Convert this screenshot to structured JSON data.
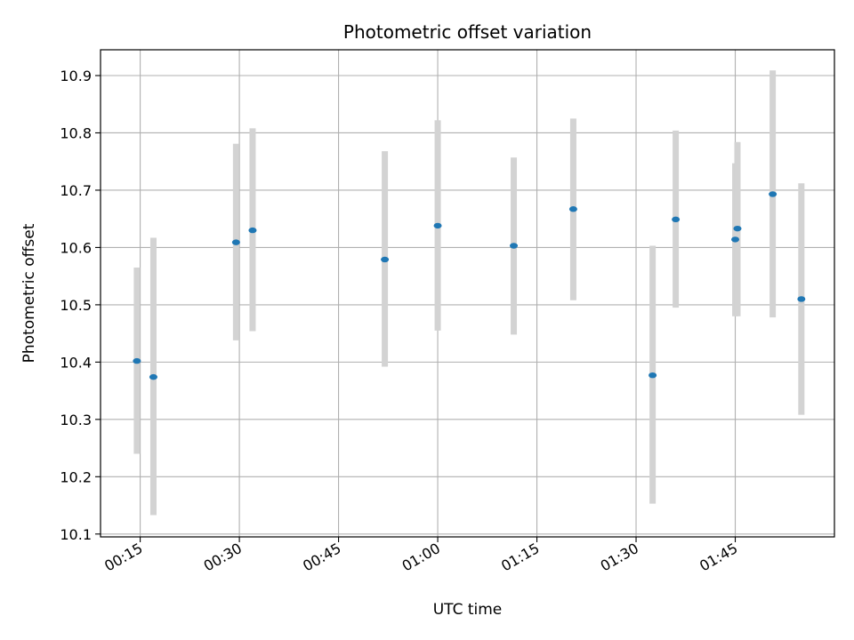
{
  "chart_data": {
    "type": "scatter",
    "title": "Photometric offset variation",
    "xlabel": "UTC time",
    "ylabel": "Photometric offset",
    "grid": true,
    "x_tick_labels": [
      "00:15",
      "00:30",
      "00:45",
      "01:00",
      "01:15",
      "01:30",
      "01:45"
    ],
    "x_ticks": [
      "00:15",
      "00:30",
      "00:45",
      "01:00",
      "01:15",
      "01:30",
      "01:45"
    ],
    "y_ticks": [
      10.1,
      10.2,
      10.3,
      10.4,
      10.5,
      10.6,
      10.7,
      10.8,
      10.9
    ],
    "y_tick_labels": [
      "10.1",
      "10.2",
      "10.3",
      "10.4",
      "10.5",
      "10.6",
      "10.7",
      "10.8",
      "10.9"
    ],
    "xlim": [
      "00:09",
      "02:00"
    ],
    "ylim": [
      10.095,
      10.945
    ],
    "colors": {
      "point": "#1f77b4",
      "errorbar": "#d3d3d3",
      "grid": "#b0b0b0"
    },
    "points": [
      {
        "x": "00:14:30",
        "y": 10.402,
        "yerr_low": 10.24,
        "yerr_high": 10.565
      },
      {
        "x": "00:17:00",
        "y": 10.374,
        "yerr_low": 10.133,
        "yerr_high": 10.617
      },
      {
        "x": "00:29:30",
        "y": 10.609,
        "yerr_low": 10.438,
        "yerr_high": 10.781
      },
      {
        "x": "00:32:00",
        "y": 10.63,
        "yerr_low": 10.454,
        "yerr_high": 10.808
      },
      {
        "x": "00:52:00",
        "y": 10.579,
        "yerr_low": 10.392,
        "yerr_high": 10.768
      },
      {
        "x": "01:00:00",
        "y": 10.638,
        "yerr_low": 10.455,
        "yerr_high": 10.822
      },
      {
        "x": "01:11:30",
        "y": 10.603,
        "yerr_low": 10.448,
        "yerr_high": 10.757
      },
      {
        "x": "01:20:30",
        "y": 10.667,
        "yerr_low": 10.508,
        "yerr_high": 10.825
      },
      {
        "x": "01:32:30",
        "y": 10.377,
        "yerr_low": 10.153,
        "yerr_high": 10.603
      },
      {
        "x": "01:36:00",
        "y": 10.649,
        "yerr_low": 10.495,
        "yerr_high": 10.804
      },
      {
        "x": "01:45:00",
        "y": 10.614,
        "yerr_low": 10.48,
        "yerr_high": 10.747
      },
      {
        "x": "01:45:20",
        "y": 10.633,
        "yerr_low": 10.48,
        "yerr_high": 10.784
      },
      {
        "x": "01:50:40",
        "y": 10.693,
        "yerr_low": 10.478,
        "yerr_high": 10.909
      },
      {
        "x": "01:55:00",
        "y": 10.51,
        "yerr_low": 10.308,
        "yerr_high": 10.712
      }
    ]
  }
}
